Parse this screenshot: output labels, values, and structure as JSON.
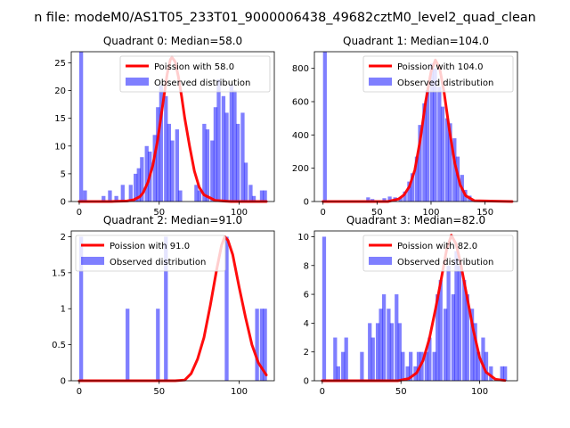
{
  "figure": {
    "suptitle": "n file: modeM0/AS1T05_233T01_9000006438_49682cztM0_level2_quad_clean"
  },
  "colors": {
    "hist": "#0000ff",
    "poisson": "#ff0000",
    "axis": "#000000",
    "background": "#ffffff"
  },
  "chart_data": [
    {
      "type": "bar+line",
      "title": "Quadrant 0: Median=58.0",
      "median": 58.0,
      "xlim": [
        -5,
        122
      ],
      "ylim": [
        0,
        27
      ],
      "xticks": [
        0,
        50,
        100
      ],
      "yticks": [
        0,
        5,
        10,
        15,
        20,
        25
      ],
      "bin_width": 2.4,
      "legend_position": "upper-right",
      "series": [
        {
          "name": "Poission with 58.0",
          "kind": "line",
          "x": [
            0,
            20,
            30,
            34,
            38,
            40,
            43,
            46,
            49,
            52,
            55,
            57,
            58,
            60,
            62,
            64,
            66,
            69,
            72,
            75,
            78,
            85,
            95,
            117
          ],
          "y": [
            0,
            0,
            0.1,
            0.3,
            0.9,
            1.6,
            3.5,
            6.5,
            11,
            17,
            23,
            25.6,
            26,
            25.2,
            22.5,
            19,
            15,
            10,
            5.5,
            2.6,
            1.2,
            0.2,
            0,
            0
          ]
        },
        {
          "name": "Observed distribution",
          "kind": "hist",
          "x": [
            0,
            2.4,
            14,
            18,
            22,
            26,
            31,
            34,
            36,
            38,
            41,
            43,
            46,
            48,
            50,
            53,
            55,
            57,
            60,
            62,
            72,
            74,
            77,
            79,
            82,
            84,
            86,
            89,
            91,
            94,
            96,
            98,
            101,
            103,
            106,
            108,
            113,
            115
          ],
          "y": [
            27,
            2,
            1,
            2,
            1,
            3,
            3,
            5,
            6,
            8,
            10,
            9,
            12,
            17,
            21,
            19,
            14,
            11,
            13,
            2,
            3,
            2,
            14,
            13,
            11,
            17,
            22,
            19,
            16,
            21,
            20,
            14,
            16,
            7,
            3,
            1,
            2,
            2
          ]
        }
      ]
    },
    {
      "type": "bar+line",
      "title": "Quadrant 1: Median=104.0",
      "median": 104.0,
      "xlim": [
        -8,
        180
      ],
      "ylim": [
        0,
        900
      ],
      "xticks": [
        0,
        50,
        100,
        150
      ],
      "yticks": [
        0,
        200,
        400,
        600,
        800
      ],
      "bin_width": 3.5,
      "legend_position": "upper-right",
      "series": [
        {
          "name": "Poission with 104.0",
          "kind": "line",
          "x": [
            0,
            60,
            70,
            75,
            80,
            85,
            90,
            95,
            100,
            104,
            108,
            112,
            117,
            122,
            127,
            132,
            140,
            175
          ],
          "y": [
            0,
            0,
            15,
            40,
            90,
            190,
            370,
            600,
            780,
            850,
            800,
            660,
            430,
            230,
            100,
            35,
            5,
            0
          ]
        },
        {
          "name": "Observed distribution",
          "kind": "hist",
          "x": [
            0,
            40,
            44,
            55,
            60,
            65,
            70,
            74,
            78,
            81,
            85,
            88,
            92,
            95,
            99,
            102,
            106,
            109,
            113,
            116,
            120,
            123,
            127,
            130,
            134,
            137
          ],
          "y": [
            900,
            25,
            15,
            20,
            30,
            25,
            25,
            60,
            120,
            170,
            270,
            460,
            590,
            670,
            830,
            800,
            690,
            570,
            500,
            470,
            380,
            270,
            160,
            70,
            35,
            10
          ]
        }
      ]
    },
    {
      "type": "bar+line",
      "title": "Quadrant 2: Median=91.0",
      "median": 91.0,
      "xlim": [
        -5,
        122
      ],
      "ylim": [
        0,
        2.08
      ],
      "xticks": [
        0,
        50,
        100
      ],
      "yticks": [
        0.0,
        0.5,
        1.0,
        1.5,
        2.0
      ],
      "bin_width": 2.4,
      "legend_position": "upper-left",
      "series": [
        {
          "name": "Poission with 91.0",
          "kind": "line",
          "x": [
            0,
            60,
            66,
            70,
            74,
            78,
            82,
            86,
            89,
            91,
            93,
            96,
            100,
            104,
            108,
            112,
            117
          ],
          "y": [
            0,
            0,
            0.01,
            0.1,
            0.3,
            0.6,
            1.05,
            1.55,
            1.88,
            2.0,
            1.95,
            1.75,
            1.3,
            0.88,
            0.5,
            0.25,
            0.08
          ]
        },
        {
          "name": "Observed distribution",
          "kind": "hist",
          "x": [
            0,
            29,
            48,
            53,
            91,
            110,
            113,
            115
          ],
          "y": [
            2,
            1,
            1,
            2,
            2,
            1,
            1,
            1
          ]
        }
      ]
    },
    {
      "type": "bar+line",
      "title": "Quadrant 3: Median=82.0",
      "median": 82.0,
      "xlim": [
        -5,
        124
      ],
      "ylim": [
        0,
        10.4
      ],
      "xticks": [
        0,
        50,
        100
      ],
      "yticks": [
        0,
        2,
        4,
        6,
        8,
        10
      ],
      "bin_width": 2.4,
      "legend_position": "upper-right",
      "series": [
        {
          "name": "Poission with 82.0",
          "kind": "line",
          "x": [
            0,
            48,
            55,
            60,
            64,
            68,
            72,
            76,
            79,
            82,
            85,
            88,
            92,
            96,
            100,
            104,
            110,
            116
          ],
          "y": [
            0,
            0,
            0.15,
            0.55,
            1.4,
            2.9,
            5,
            7.3,
            9.1,
            10.1,
            9.5,
            8.1,
            5.8,
            3.5,
            1.6,
            0.6,
            0.1,
            0.02
          ]
        },
        {
          "name": "Observed distribution",
          "kind": "hist",
          "x": [
            0,
            7,
            9,
            12,
            14,
            24,
            29,
            31,
            34,
            36,
            38,
            41,
            43,
            46,
            48,
            50,
            53,
            55,
            58,
            60,
            62,
            65,
            67,
            70,
            72,
            74,
            77,
            79,
            82,
            84,
            86,
            89,
            91,
            94,
            96,
            98,
            101,
            103,
            106,
            113,
            115
          ],
          "y": [
            10,
            3,
            1,
            2,
            3,
            2,
            4,
            3,
            4,
            5,
            6,
            5,
            4,
            6,
            4,
            2,
            1,
            2,
            1,
            2,
            2,
            2,
            3,
            2,
            6,
            7,
            5,
            8,
            6,
            9,
            8,
            7,
            6,
            5,
            4,
            2,
            3,
            2,
            1,
            1,
            1
          ]
        }
      ]
    }
  ]
}
